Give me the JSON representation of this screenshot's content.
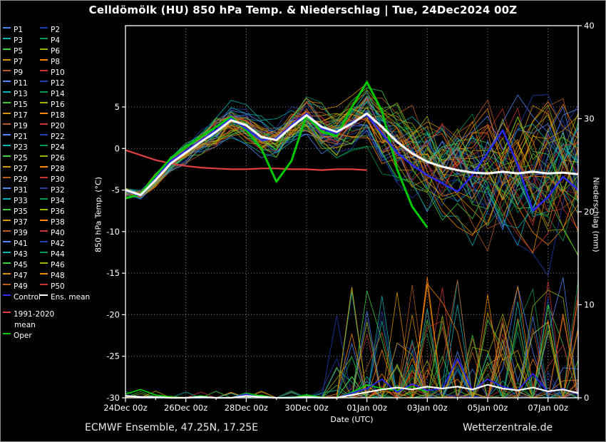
{
  "title": "Celldömölk  (HU)  850 hPa Temp. & Niederschlag | Tue, 24Dec2024 00Z",
  "footer_left": "ECMWF Ensemble, 47.25N, 17.25E",
  "footer_right": "Wetterzentrale.de",
  "legend": {
    "members": [
      "P1",
      "P2",
      "P3",
      "P4",
      "P5",
      "P6",
      "P7",
      "P8",
      "P9",
      "P10",
      "P11",
      "P12",
      "P13",
      "P14",
      "P15",
      "P16",
      "P17",
      "P18",
      "P19",
      "P20",
      "P21",
      "P22",
      "P23",
      "P24",
      "P25",
      "P26",
      "P27",
      "P28",
      "P29",
      "P30",
      "P31",
      "P32",
      "P33",
      "P34",
      "P35",
      "P36",
      "P37",
      "P38",
      "P39",
      "P40",
      "P41",
      "P42",
      "P43",
      "P44",
      "P45",
      "P46",
      "P47",
      "P48",
      "P49",
      "P50"
    ],
    "control_label": "Control",
    "ens_mean_label": "Ens. mean",
    "climate_label_line1": "1991-2020",
    "climate_label_line2": "mean",
    "oper_label": "Oper",
    "palette": [
      "#4f86f7",
      "#1f3fae",
      "#00b3b3",
      "#009955",
      "#3ecf3e",
      "#a0b400",
      "#d89400",
      "#ff8800",
      "#b85c1e",
      "#cc3333"
    ],
    "control_color": "#2a2aee",
    "ens_mean_color": "#ffffff",
    "climate_color": "#e04040",
    "oper_color": "#00c800"
  },
  "chart_data": {
    "type": "line",
    "title": "Celldömölk (HU) 850 hPa Temp. & Niederschlag | Tue, 24Dec2024 00Z",
    "xlabel": "Date (UTC)",
    "ylabel_left": "850 hPa Temp. (°C)",
    "ylabel_right": "Niederschlag (mm)",
    "ylim_left": [
      -30,
      5
    ],
    "ylim_right": [
      0,
      40
    ],
    "grid": true,
    "legend_position": "left",
    "x_hours_step": 12,
    "x_total_hours": 360,
    "x_tick_hours": [
      0,
      48,
      96,
      144,
      192,
      240,
      288,
      336
    ],
    "x_tick_labels": [
      "24Dec 00z",
      "26Dec 00z",
      "28Dec 00z",
      "30Dec 00z",
      "01Jan 00z",
      "03Jan 00z",
      "05Jan 00z",
      "07Jan 00z"
    ],
    "y_ticks_left": [
      5,
      0,
      -5,
      -10,
      -15,
      -20,
      -25,
      -30
    ],
    "y_ticks_right": [
      40,
      30,
      20,
      10,
      0
    ],
    "n_members": 50,
    "series": {
      "ens_mean_temp": [
        -5.0,
        -5.6,
        -3.8,
        -1.8,
        -0.5,
        0.8,
        2.0,
        3.4,
        2.8,
        1.4,
        1.0,
        2.6,
        4.0,
        2.6,
        2.0,
        3.0,
        4.2,
        2.6,
        0.8,
        -0.6,
        -1.6,
        -2.2,
        -2.6,
        -2.9,
        -3.0,
        -2.8,
        -3.0,
        -2.8,
        -3.0,
        -2.9,
        -3.1
      ],
      "control_temp": [
        -5.1,
        -5.7,
        -3.6,
        -1.5,
        -0.3,
        1.0,
        2.2,
        3.6,
        2.4,
        1.0,
        1.2,
        2.8,
        4.2,
        2.4,
        1.8,
        3.2,
        4.0,
        1.8,
        -0.5,
        -2.0,
        -3.2,
        -4.2,
        -5.2,
        -3.2,
        -0.5,
        2.2,
        -2.0,
        -7.5,
        -5.8,
        -3.4,
        -5.0
      ],
      "oper_temp": [
        -6.0,
        -5.5,
        -3.2,
        -1.2,
        0.2,
        1.4,
        2.6,
        3.8,
        2.2,
        0.0,
        -4.0,
        -1.5,
        4.0,
        2.0,
        1.5,
        5.0,
        8.0,
        4.5,
        -2.5,
        -7.0,
        -9.5
      ],
      "climate_mean_temp": [
        -0.2,
        -0.8,
        -1.4,
        -1.8,
        -2.1,
        -2.3,
        -2.4,
        -2.5,
        -2.5,
        -2.4,
        -2.4,
        -2.5,
        -2.5,
        -2.6,
        -2.5,
        -2.5,
        -2.6
      ],
      "ens_mean_precip": [
        0.2,
        0.1,
        0.1,
        0,
        0,
        0.1,
        0,
        0,
        0.2,
        0.1,
        0,
        0,
        0.1,
        0,
        0,
        0.3,
        0.6,
        0.9,
        1.1,
        0.9,
        1.2,
        1.0,
        1.2,
        0.9,
        1.4,
        1.0,
        0.8,
        1.1,
        0.7,
        0.9,
        0.5
      ],
      "control_precip": [
        0.3,
        0,
        0,
        0,
        0,
        0,
        0,
        0,
        0.4,
        0,
        0,
        0,
        0,
        0,
        0,
        0.5,
        1.0,
        2.0,
        0.6,
        1.5,
        0.8,
        1.0,
        4.2,
        0.8,
        2.0,
        1.2,
        0.8,
        2.6,
        0.6,
        1.0,
        0.4
      ],
      "oper_precip": [
        0.4,
        0.9,
        0.3,
        0.1,
        0,
        0.2,
        0,
        0,
        0.5,
        0.2,
        0,
        0,
        0.3,
        0,
        0,
        0.6,
        1.4,
        1.0,
        0.8,
        1.2,
        0.6
      ]
    },
    "ensemble_envelope": {
      "temp_center": [
        -5.2,
        -5.6,
        -3.8,
        -1.8,
        -0.5,
        0.8,
        2.0,
        3.4,
        2.8,
        1.4,
        1.0,
        2.6,
        4.0,
        2.6,
        2.0,
        3.0,
        4.2,
        2.4,
        1.0,
        -0.2,
        -1.2,
        -1.8,
        -2.2,
        -2.6,
        -2.8,
        -2.8,
        -3.0,
        -2.8,
        -3.0,
        -2.9,
        -3.0
      ],
      "temp_spread": [
        0.6,
        0.7,
        1.0,
        1.3,
        1.6,
        1.9,
        2.2,
        2.5,
        2.7,
        2.8,
        2.8,
        2.8,
        2.8,
        3.0,
        3.1,
        3.2,
        3.5,
        4.5,
        5.5,
        6.5,
        7.2,
        7.8,
        8.4,
        8.8,
        9.2,
        9.6,
        9.9,
        10.1,
        10.3,
        10.5,
        10.5
      ],
      "precip_onset_hour": 168,
      "precip_max": 13
    }
  }
}
